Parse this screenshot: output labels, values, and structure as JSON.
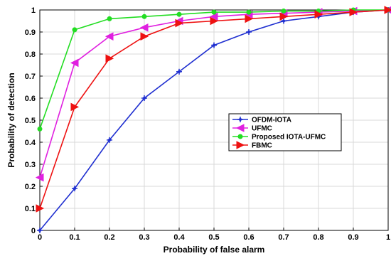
{
  "chart_data": {
    "type": "line",
    "title": "",
    "xlabel": "Probability of false alarm",
    "ylabel": "Probability of detection",
    "xlim": [
      0,
      1
    ],
    "ylim": [
      0,
      1
    ],
    "x_ticks": [
      "0",
      "0.1",
      "0.2",
      "0.3",
      "0.4",
      "0.5",
      "0.6",
      "0.7",
      "0.8",
      "0.9",
      "1"
    ],
    "y_ticks": [
      "0",
      "0.1",
      "0.2",
      "0.3",
      "0.4",
      "0.5",
      "0.6",
      "0.7",
      "0.8",
      "0.9",
      "1"
    ],
    "grid": true,
    "legend_position": "center-right",
    "x": [
      0,
      0.1,
      0.2,
      0.3,
      0.4,
      0.5,
      0.6,
      0.7,
      0.8,
      0.9,
      1.0
    ],
    "series": [
      {
        "name": "OFDM-IOTA",
        "color": "#1f2fd0",
        "marker": "plus-dot",
        "values": [
          0.0,
          0.19,
          0.41,
          0.6,
          0.72,
          0.84,
          0.9,
          0.95,
          0.97,
          0.99,
          1.0
        ]
      },
      {
        "name": "UFMC",
        "color": "#e020e0",
        "marker": "triangle-left",
        "values": [
          0.24,
          0.76,
          0.88,
          0.92,
          0.95,
          0.97,
          0.98,
          0.985,
          0.99,
          0.995,
          1.0
        ]
      },
      {
        "name": "Proposed IOTA-UFMC",
        "color": "#22dd22",
        "marker": "dot",
        "values": [
          0.46,
          0.91,
          0.96,
          0.97,
          0.98,
          0.99,
          0.99,
          0.995,
          0.995,
          1.0,
          1.0
        ]
      },
      {
        "name": "FBMC",
        "color": "#ee1111",
        "marker": "triangle-right",
        "values": [
          0.1,
          0.56,
          0.78,
          0.88,
          0.94,
          0.95,
          0.96,
          0.97,
          0.98,
          0.99,
          1.0
        ]
      }
    ]
  }
}
